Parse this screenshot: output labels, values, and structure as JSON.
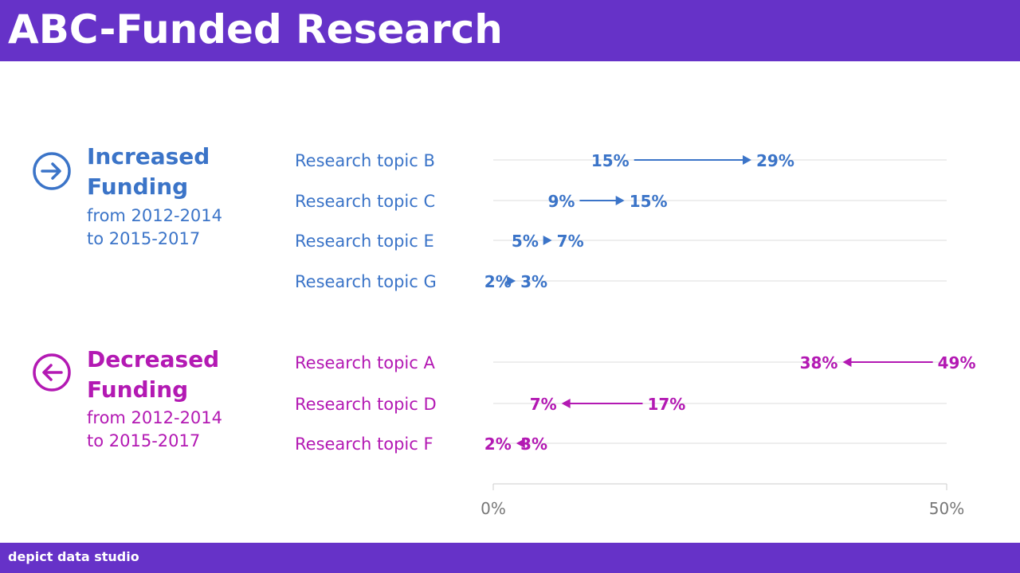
{
  "header": {
    "title": "ABC-Funded Research"
  },
  "footer": {
    "brand": "depict data studio"
  },
  "colors": {
    "brand": "#6632c8",
    "increase": "#3b74c8",
    "decrease": "#b319b3",
    "gridline": "#dddddd",
    "axis": "#777777"
  },
  "groups": {
    "increased": {
      "icon": "arrow-right-circle-icon",
      "title_line1": "Increased",
      "title_line2": "Funding",
      "sub_line1": "from 2012-2014",
      "sub_line2": "to 2015-2017"
    },
    "decreased": {
      "icon": "arrow-left-circle-icon",
      "title_line1": "Decreased",
      "title_line2": "Funding",
      "sub_line1": "from 2012-2014",
      "sub_line2": "to 2015-2017"
    }
  },
  "chart_data": {
    "type": "dot-arrow",
    "x_axis": {
      "min": 0,
      "max": 50,
      "tick_labels": [
        "0%",
        "50%"
      ]
    },
    "rows": [
      {
        "group": "increased",
        "label": "Research topic B",
        "from": 15,
        "to": 29,
        "from_label": "15%",
        "to_label": "29%"
      },
      {
        "group": "increased",
        "label": "Research topic C",
        "from": 9,
        "to": 15,
        "from_label": "9%",
        "to_label": "15%"
      },
      {
        "group": "increased",
        "label": "Research topic E",
        "from": 5,
        "to": 7,
        "from_label": "5%",
        "to_label": "7%"
      },
      {
        "group": "increased",
        "label": "Research topic G",
        "from": 2,
        "to": 3,
        "from_label": "2%",
        "to_label": "3%"
      },
      {
        "group": "decreased",
        "label": "Research topic A",
        "from": 49,
        "to": 38,
        "from_label": "49%",
        "to_label": "38%"
      },
      {
        "group": "decreased",
        "label": "Research topic D",
        "from": 17,
        "to": 7,
        "from_label": "17%",
        "to_label": "7%"
      },
      {
        "group": "decreased",
        "label": "Research topic F",
        "from": 3,
        "to": 2,
        "from_label": "3%",
        "to_label": "2%"
      }
    ]
  }
}
